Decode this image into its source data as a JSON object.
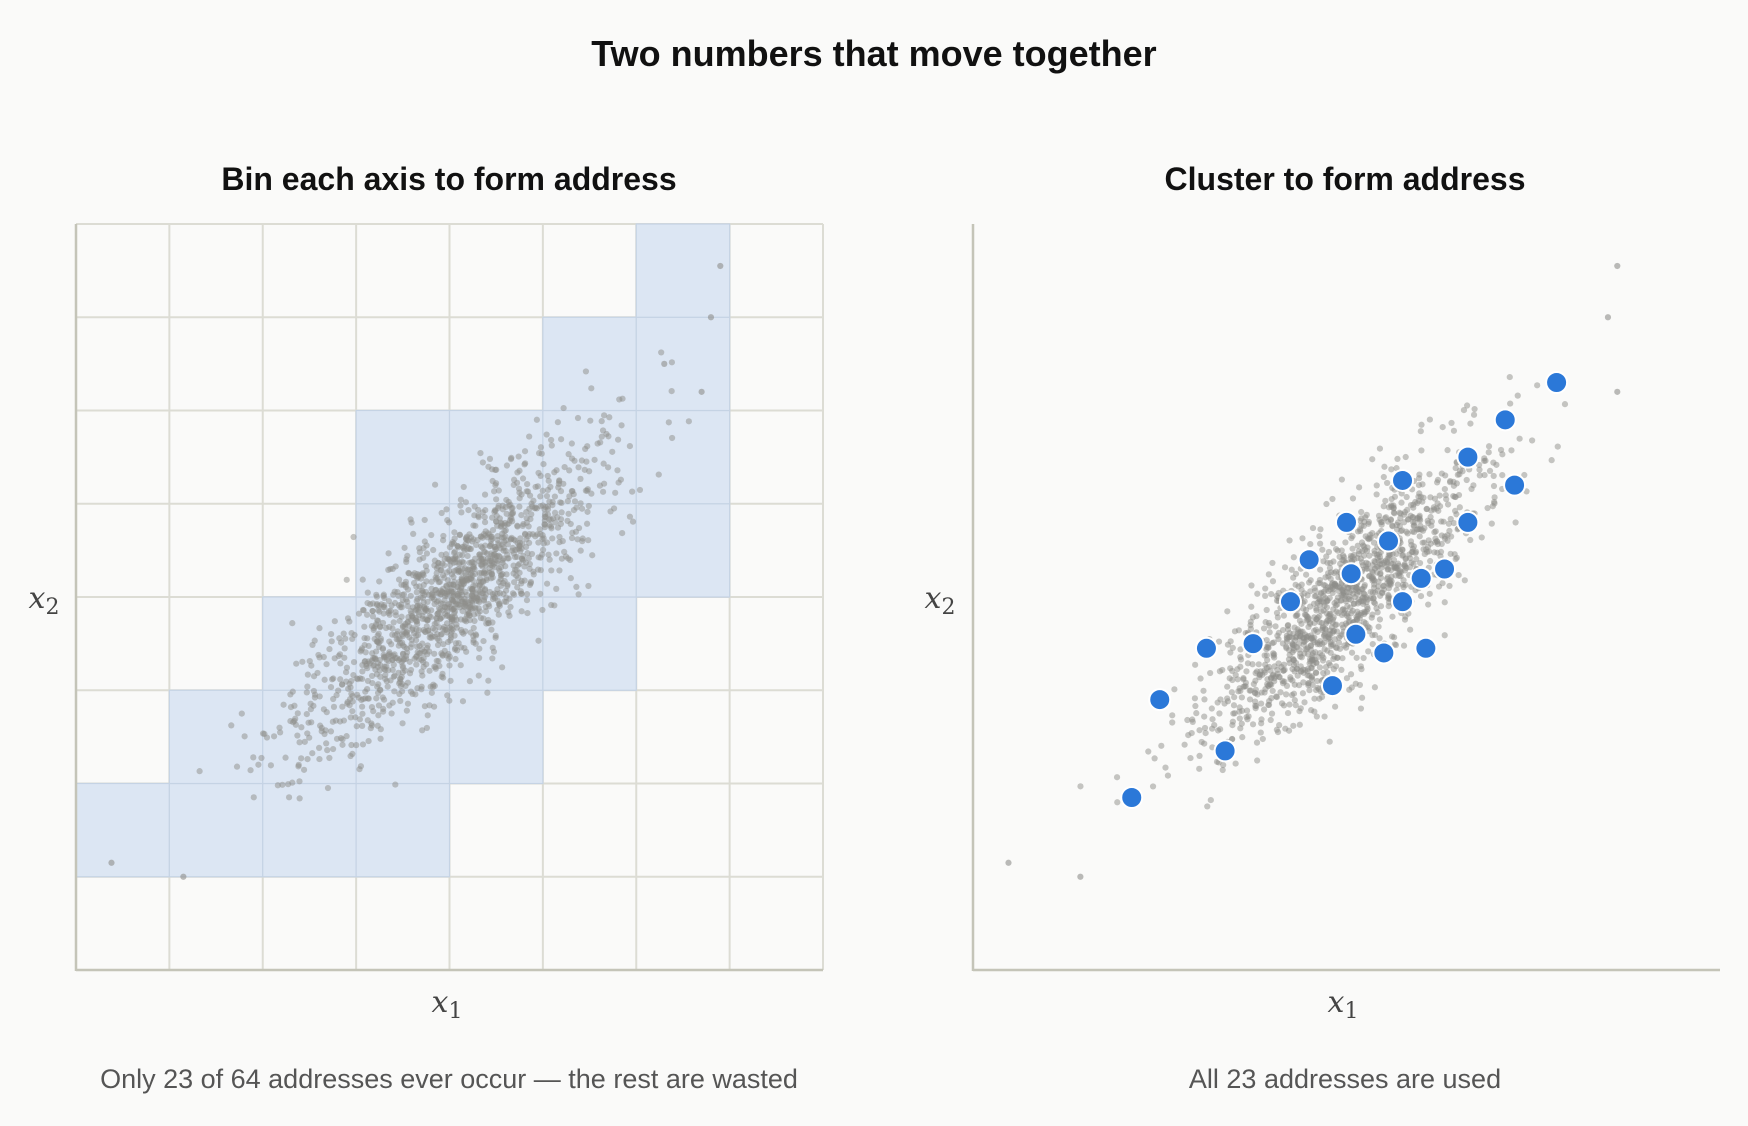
{
  "figure": {
    "title": "Two numbers that move together"
  },
  "colors": {
    "background": "#fafaf9",
    "grid": "#dcdcd4",
    "axis": "#c4c4b8",
    "cell_fill": "#dce6f3",
    "cell_stroke": "#c5d3e4",
    "point": "#8e8e8a",
    "centroid": "#2b78d8",
    "centroid_stroke": "#ffffff"
  },
  "chart_data": [
    {
      "type": "scatter",
      "title": "Bin each axis to form address",
      "xlabel": "x",
      "xlabel_sub": "1",
      "ylabel": "x",
      "ylabel_sub": "2",
      "caption": "Only 23 of 64 addresses ever occur — the rest are wasted",
      "xlim": [
        0,
        8
      ],
      "ylim": [
        0,
        8
      ],
      "grid": true,
      "bins_per_axis": 8,
      "occupied_cells": [
        [
          0,
          1
        ],
        [
          1,
          1
        ],
        [
          2,
          1
        ],
        [
          3,
          1
        ],
        [
          1,
          2
        ],
        [
          2,
          2
        ],
        [
          3,
          2
        ],
        [
          4,
          2
        ],
        [
          2,
          3
        ],
        [
          3,
          3
        ],
        [
          4,
          3
        ],
        [
          5,
          3
        ],
        [
          3,
          4
        ],
        [
          4,
          4
        ],
        [
          5,
          4
        ],
        [
          6,
          4
        ],
        [
          3,
          5
        ],
        [
          4,
          5
        ],
        [
          5,
          5
        ],
        [
          6,
          5
        ],
        [
          5,
          6
        ],
        [
          6,
          6
        ],
        [
          6,
          7
        ]
      ],
      "point_cloud": {
        "count": 1500,
        "center": [
          4,
          4
        ],
        "spread_major": 1.05,
        "spread_minor": 0.32,
        "angle_deg": 45
      },
      "outliers": [
        [
          0.38,
          1.15
        ],
        [
          1.15,
          1.0
        ],
        [
          6.9,
          7.55
        ],
        [
          6.8,
          7.0
        ],
        [
          6.3,
          6.5
        ],
        [
          6.7,
          6.2
        ]
      ]
    },
    {
      "type": "scatter",
      "title": "Cluster to form address",
      "xlabel": "x",
      "xlabel_sub": "1",
      "ylabel": "x",
      "ylabel_sub": "2",
      "caption": "All 23 addresses are used",
      "xlim": [
        0,
        8
      ],
      "ylim": [
        0,
        8
      ],
      "grid": false,
      "point_cloud": {
        "count": 1400,
        "center": [
          4,
          4
        ],
        "spread_major": 1.05,
        "spread_minor": 0.32,
        "angle_deg": 45
      },
      "outliers": [
        [
          0.38,
          1.15
        ],
        [
          1.15,
          1.0
        ],
        [
          6.9,
          7.55
        ],
        [
          6.8,
          7.0
        ],
        [
          6.9,
          6.2
        ]
      ],
      "centroids": [
        [
          6.25,
          6.3
        ],
        [
          5.7,
          5.9
        ],
        [
          5.3,
          5.5
        ],
        [
          5.8,
          5.2
        ],
        [
          4.6,
          5.25
        ],
        [
          4.0,
          4.8
        ],
        [
          5.3,
          4.8
        ],
        [
          4.45,
          4.6
        ],
        [
          3.6,
          4.4
        ],
        [
          4.05,
          4.25
        ],
        [
          4.8,
          4.2
        ],
        [
          5.05,
          4.3
        ],
        [
          4.6,
          3.95
        ],
        [
          3.4,
          3.95
        ],
        [
          3.0,
          3.5
        ],
        [
          4.1,
          3.6
        ],
        [
          4.4,
          3.4
        ],
        [
          2.5,
          3.45
        ],
        [
          3.85,
          3.05
        ],
        [
          4.85,
          3.45
        ],
        [
          2.0,
          2.9
        ],
        [
          2.7,
          2.35
        ],
        [
          1.7,
          1.85
        ]
      ]
    }
  ]
}
